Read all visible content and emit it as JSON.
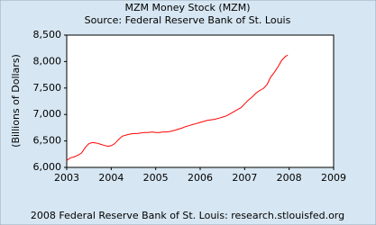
{
  "chart_data": {
    "type": "line",
    "title": "MZM Money Stock (MZM)",
    "subtitle": "Source: Federal Reserve Bank of St. Louis",
    "y_label": "(Billions of Dollars)",
    "footer": "2008 Federal Reserve Bank of St. Louis: research.stlouisfed.org",
    "x": [
      2003.0,
      2003.08,
      2003.17,
      2003.25,
      2003.33,
      2003.42,
      2003.5,
      2003.58,
      2003.67,
      2003.75,
      2003.83,
      2003.92,
      2004.0,
      2004.08,
      2004.17,
      2004.25,
      2004.33,
      2004.42,
      2004.5,
      2004.58,
      2004.67,
      2004.75,
      2004.83,
      2004.92,
      2005.0,
      2005.08,
      2005.17,
      2005.25,
      2005.33,
      2005.42,
      2005.5,
      2005.58,
      2005.67,
      2005.75,
      2005.83,
      2005.92,
      2006.0,
      2006.08,
      2006.17,
      2006.25,
      2006.33,
      2006.42,
      2006.5,
      2006.58,
      2006.67,
      2006.75,
      2006.83,
      2006.92,
      2007.0,
      2007.08,
      2007.17,
      2007.25,
      2007.33,
      2007.42,
      2007.5,
      2007.58,
      2007.67,
      2007.75,
      2007.83,
      2007.92,
      2007.97
    ],
    "series": [
      {
        "name": "MZM",
        "color": "#ff0000",
        "values": [
          6130,
          6180,
          6200,
          6230,
          6270,
          6380,
          6450,
          6470,
          6460,
          6440,
          6420,
          6400,
          6410,
          6450,
          6530,
          6590,
          6610,
          6630,
          6640,
          6640,
          6650,
          6660,
          6660,
          6670,
          6660,
          6660,
          6670,
          6670,
          6680,
          6700,
          6720,
          6740,
          6770,
          6790,
          6810,
          6830,
          6850,
          6870,
          6890,
          6900,
          6910,
          6930,
          6950,
          6970,
          7010,
          7050,
          7090,
          7130,
          7200,
          7270,
          7330,
          7400,
          7450,
          7490,
          7560,
          7700,
          7800,
          7900,
          8020,
          8100,
          8120
        ]
      }
    ],
    "xlim": [
      2003,
      2009
    ],
    "xticks": [
      2003,
      2004,
      2005,
      2006,
      2007,
      2008,
      2009
    ],
    "ylim": [
      6000,
      8500
    ],
    "yticks": [
      {
        "value": 6000,
        "label": "6,000"
      },
      {
        "value": 6500,
        "label": "6,500"
      },
      {
        "value": 7000,
        "label": "7,000"
      },
      {
        "value": 7500,
        "label": "7,500"
      },
      {
        "value": 8000,
        "label": "8,000"
      },
      {
        "value": 8500,
        "label": "8,500"
      }
    ],
    "grid": false
  }
}
